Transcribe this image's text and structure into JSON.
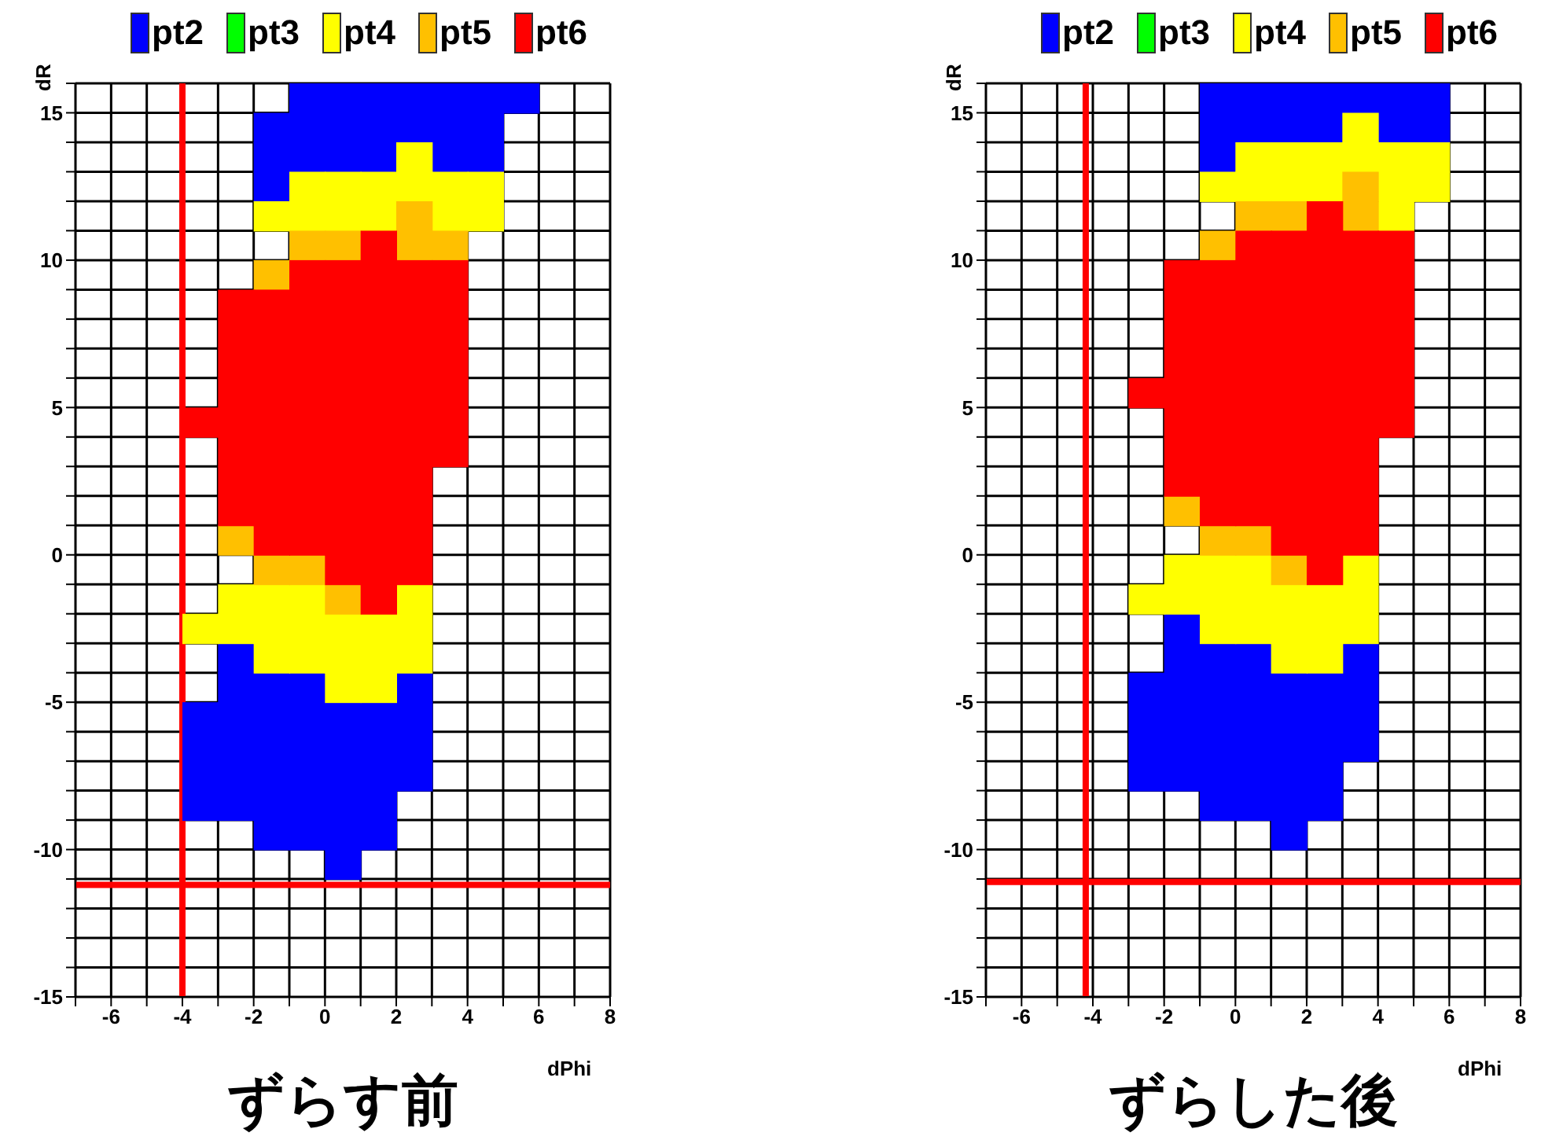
{
  "chart_data": [
    {
      "type": "scatter",
      "marker": "square",
      "title": "ずらす前",
      "xlabel": "dPhi",
      "ylabel": "dR",
      "xlim": [
        -7,
        8
      ],
      "ylim": [
        -15,
        16
      ],
      "xticks": [
        {
          "value": -7,
          "label": null
        },
        -6,
        {
          "value": -5,
          "label": null
        },
        -4,
        {
          "value": -3,
          "label": null
        },
        -2,
        {
          "value": -1,
          "label": null
        },
        0,
        {
          "value": 1,
          "label": null
        },
        2,
        {
          "value": 3,
          "label": null
        },
        4,
        {
          "value": 5,
          "label": null
        },
        6,
        {
          "value": 7,
          "label": null
        },
        8
      ],
      "yticks": [
        -15,
        {
          "value": -14,
          "label": null
        },
        {
          "value": -13,
          "label": null
        },
        {
          "value": -12,
          "label": null
        },
        {
          "value": -11,
          "label": null
        },
        -10,
        {
          "value": -9,
          "label": null
        },
        {
          "value": -8,
          "label": null
        },
        {
          "value": -7,
          "label": null
        },
        {
          "value": -6,
          "label": null
        },
        -5,
        {
          "value": -4,
          "label": null
        },
        {
          "value": -3,
          "label": null
        },
        {
          "value": -2,
          "label": null
        },
        {
          "value": -1,
          "label": null
        },
        0,
        {
          "value": 1,
          "label": null
        },
        {
          "value": 2,
          "label": null
        },
        {
          "value": 3,
          "label": null
        },
        {
          "value": 4,
          "label": null
        },
        5,
        {
          "value": 6,
          "label": null
        },
        {
          "value": 7,
          "label": null
        },
        {
          "value": 8,
          "label": null
        },
        {
          "value": 9,
          "label": null
        },
        10,
        {
          "value": 11,
          "label": null
        },
        {
          "value": 12,
          "label": null
        },
        {
          "value": 13,
          "label": null
        },
        {
          "value": 14,
          "label": null
        },
        15,
        {
          "value": 16,
          "label": null
        }
      ],
      "grid": true,
      "legend": "top",
      "series": [
        {
          "name": "pt2",
          "color": "#0000ff",
          "x": [
            -0.5,
            0.5,
            1.5,
            2.5,
            3.5,
            4.5,
            5.5,
            -1.5,
            -0.5,
            0.5,
            1.5,
            2.5,
            3.5,
            4.5,
            -1.5,
            -0.5,
            0.5,
            1.5,
            3.5,
            4.5,
            -1.5,
            -2.5,
            -2.5,
            -1.5,
            -0.5,
            2.5,
            -3.5,
            -2.5,
            -1.5,
            -0.5,
            0.5,
            1.5,
            2.5,
            -3.5,
            -2.5,
            -1.5,
            -0.5,
            0.5,
            1.5,
            2.5,
            -3.5,
            -2.5,
            -1.5,
            -0.5,
            0.5,
            1.5,
            2.5,
            -3.5,
            -2.5,
            -1.5,
            -0.5,
            0.5,
            1.5,
            -1.5,
            -0.5,
            0.5,
            1.5,
            0.5
          ],
          "values": [
            15.5,
            15.5,
            15.5,
            15.5,
            15.5,
            15.5,
            15.5,
            14.5,
            14.5,
            14.5,
            14.5,
            14.5,
            14.5,
            14.5,
            13.5,
            13.5,
            13.5,
            13.5,
            13.5,
            13.5,
            12.5,
            -3.5,
            -4.5,
            -4.5,
            -4.5,
            -4.5,
            -5.5,
            -5.5,
            -5.5,
            -5.5,
            -5.5,
            -5.5,
            -5.5,
            -6.5,
            -6.5,
            -6.5,
            -6.5,
            -6.5,
            -6.5,
            -6.5,
            -7.5,
            -7.5,
            -7.5,
            -7.5,
            -7.5,
            -7.5,
            -7.5,
            -8.5,
            -8.5,
            -8.5,
            -8.5,
            -8.5,
            -8.5,
            -9.5,
            -9.5,
            -9.5,
            -9.5,
            -10.5
          ]
        },
        {
          "name": "pt3",
          "color": "#00ff00"
        },
        {
          "name": "pt4",
          "color": "#ffff00",
          "x": [
            2.5,
            -0.5,
            0.5,
            1.5,
            2.5,
            3.5,
            4.5,
            -1.5,
            -0.5,
            0.5,
            1.5,
            3.5,
            4.5,
            -2.5,
            -1.5,
            -0.5,
            2.5,
            -3.5,
            -2.5,
            -1.5,
            -0.5,
            0.5,
            1.5,
            2.5,
            -1.5,
            -0.5,
            0.5,
            1.5,
            2.5,
            0.5,
            1.5
          ],
          "values": [
            13.5,
            12.5,
            12.5,
            12.5,
            12.5,
            12.5,
            12.5,
            11.5,
            11.5,
            11.5,
            11.5,
            11.5,
            11.5,
            -1.5,
            -1.5,
            -1.5,
            -1.5,
            -2.5,
            -2.5,
            -2.5,
            -2.5,
            -2.5,
            -2.5,
            -2.5,
            -3.5,
            -3.5,
            -3.5,
            -3.5,
            -3.5,
            -4.5,
            -4.5
          ]
        },
        {
          "name": "pt5",
          "color": "#ffc000",
          "x": [
            2.5,
            -0.5,
            0.5,
            2.5,
            3.5,
            -1.5,
            -2.5,
            -1.5,
            -0.5,
            0.5
          ],
          "values": [
            11.5,
            10.5,
            10.5,
            10.5,
            10.5,
            9.5,
            0.5,
            -0.5,
            -0.5,
            -1.5
          ]
        },
        {
          "name": "pt6",
          "color": "#ff0000",
          "x": [
            1.5,
            -0.5,
            0.5,
            1.5,
            2.5,
            3.5,
            -2.5,
            -1.5,
            -0.5,
            0.5,
            1.5,
            2.5,
            3.5,
            -2.5,
            -1.5,
            -0.5,
            0.5,
            1.5,
            2.5,
            3.5,
            -2.5,
            -1.5,
            -0.5,
            0.5,
            1.5,
            2.5,
            3.5,
            -2.5,
            -1.5,
            -0.5,
            0.5,
            1.5,
            2.5,
            3.5,
            -3.5,
            -2.5,
            -1.5,
            -0.5,
            0.5,
            1.5,
            2.5,
            3.5,
            -2.5,
            -1.5,
            -0.5,
            0.5,
            1.5,
            2.5,
            3.5,
            -2.5,
            -1.5,
            -0.5,
            0.5,
            1.5,
            2.5,
            -2.5,
            -1.5,
            -0.5,
            0.5,
            1.5,
            2.5,
            -1.5,
            -0.5,
            0.5,
            1.5,
            2.5,
            0.5,
            1.5,
            2.5,
            1.5
          ],
          "values": [
            10.5,
            9.5,
            9.5,
            9.5,
            9.5,
            9.5,
            8.5,
            8.5,
            8.5,
            8.5,
            8.5,
            8.5,
            8.5,
            7.5,
            7.5,
            7.5,
            7.5,
            7.5,
            7.5,
            7.5,
            6.5,
            6.5,
            6.5,
            6.5,
            6.5,
            6.5,
            6.5,
            5.5,
            5.5,
            5.5,
            5.5,
            5.5,
            5.5,
            5.5,
            4.5,
            4.5,
            4.5,
            4.5,
            4.5,
            4.5,
            4.5,
            4.5,
            3.5,
            3.5,
            3.5,
            3.5,
            3.5,
            3.5,
            3.5,
            2.5,
            2.5,
            2.5,
            2.5,
            2.5,
            2.5,
            1.5,
            1.5,
            1.5,
            1.5,
            1.5,
            1.5,
            0.5,
            0.5,
            0.5,
            0.5,
            0.5,
            -0.5,
            -0.5,
            -0.5,
            -1.5
          ]
        }
      ],
      "ref_lines": [
        {
          "axis": "x",
          "value": -4,
          "color": "#ff0000"
        },
        {
          "axis": "y",
          "value": -11.2,
          "color": "#ff0000"
        }
      ]
    },
    {
      "type": "scatter",
      "marker": "square",
      "title": "ずらした後",
      "xlabel": "dPhi",
      "ylabel": "dR",
      "xlim": [
        -7,
        8
      ],
      "ylim": [
        -15,
        16
      ],
      "xticks": [
        {
          "value": -7,
          "label": null
        },
        -6,
        {
          "value": -5,
          "label": null
        },
        -4,
        {
          "value": -3,
          "label": null
        },
        -2,
        {
          "value": -1,
          "label": null
        },
        0,
        {
          "value": 1,
          "label": null
        },
        2,
        {
          "value": 3,
          "label": null
        },
        4,
        {
          "value": 5,
          "label": null
        },
        6,
        {
          "value": 7,
          "label": null
        },
        8
      ],
      "yticks": [
        -15,
        {
          "value": -14,
          "label": null
        },
        {
          "value": -13,
          "label": null
        },
        {
          "value": -12,
          "label": null
        },
        {
          "value": -11,
          "label": null
        },
        -10,
        {
          "value": -9,
          "label": null
        },
        {
          "value": -8,
          "label": null
        },
        {
          "value": -7,
          "label": null
        },
        {
          "value": -6,
          "label": null
        },
        -5,
        {
          "value": -4,
          "label": null
        },
        {
          "value": -3,
          "label": null
        },
        {
          "value": -2,
          "label": null
        },
        {
          "value": -1,
          "label": null
        },
        0,
        {
          "value": 1,
          "label": null
        },
        {
          "value": 2,
          "label": null
        },
        {
          "value": 3,
          "label": null
        },
        {
          "value": 4,
          "label": null
        },
        5,
        {
          "value": 6,
          "label": null
        },
        {
          "value": 7,
          "label": null
        },
        {
          "value": 8,
          "label": null
        },
        {
          "value": 9,
          "label": null
        },
        10,
        {
          "value": 11,
          "label": null
        },
        {
          "value": 12,
          "label": null
        },
        {
          "value": 13,
          "label": null
        },
        {
          "value": 14,
          "label": null
        },
        15,
        {
          "value": 16,
          "label": null
        }
      ],
      "grid": true,
      "legend": "top",
      "series": [
        {
          "name": "pt2",
          "color": "#0000ff",
          "x": [
            -0.5,
            0.5,
            1.5,
            2.5,
            3.5,
            4.5,
            5.5,
            -0.5,
            0.5,
            1.5,
            2.5,
            4.5,
            5.5,
            -0.5,
            -1.5,
            -1.5,
            -0.5,
            0.5,
            3.5,
            -2.5,
            -1.5,
            -0.5,
            0.5,
            1.5,
            2.5,
            3.5,
            -2.5,
            -1.5,
            -0.5,
            0.5,
            1.5,
            2.5,
            3.5,
            -2.5,
            -1.5,
            -0.5,
            0.5,
            1.5,
            2.5,
            3.5,
            -2.5,
            -1.5,
            -0.5,
            0.5,
            1.5,
            2.5,
            -0.5,
            0.5,
            1.5,
            2.5,
            1.5
          ],
          "values": [
            15.5,
            15.5,
            15.5,
            15.5,
            15.5,
            15.5,
            15.5,
            14.5,
            14.5,
            14.5,
            14.5,
            14.5,
            14.5,
            13.5,
            -2.5,
            -3.5,
            -3.5,
            -3.5,
            -3.5,
            -4.5,
            -4.5,
            -4.5,
            -4.5,
            -4.5,
            -4.5,
            -4.5,
            -5.5,
            -5.5,
            -5.5,
            -5.5,
            -5.5,
            -5.5,
            -5.5,
            -6.5,
            -6.5,
            -6.5,
            -6.5,
            -6.5,
            -6.5,
            -6.5,
            -7.5,
            -7.5,
            -7.5,
            -7.5,
            -7.5,
            -7.5,
            -8.5,
            -8.5,
            -8.5,
            -8.5,
            -9.5
          ]
        },
        {
          "name": "pt3",
          "color": "#00ff00"
        },
        {
          "name": "pt4",
          "color": "#ffff00",
          "x": [
            3.5,
            0.5,
            1.5,
            2.5,
            3.5,
            4.5,
            5.5,
            -0.5,
            0.5,
            1.5,
            2.5,
            4.5,
            5.5,
            4.5,
            -1.5,
            -0.5,
            0.5,
            3.5,
            -2.5,
            -1.5,
            -0.5,
            0.5,
            1.5,
            2.5,
            3.5,
            -0.5,
            0.5,
            1.5,
            2.5,
            3.5,
            1.5,
            2.5
          ],
          "values": [
            14.5,
            13.5,
            13.5,
            13.5,
            13.5,
            13.5,
            13.5,
            12.5,
            12.5,
            12.5,
            12.5,
            12.5,
            12.5,
            11.5,
            -0.5,
            -0.5,
            -0.5,
            -0.5,
            -1.5,
            -1.5,
            -1.5,
            -1.5,
            -1.5,
            -1.5,
            -1.5,
            -2.5,
            -2.5,
            -2.5,
            -2.5,
            -2.5,
            -3.5,
            -3.5
          ]
        },
        {
          "name": "pt5",
          "color": "#ffc000",
          "x": [
            3.5,
            0.5,
            1.5,
            3.5,
            -0.5,
            -1.5,
            -0.5,
            0.5,
            1.5
          ],
          "values": [
            12.5,
            11.5,
            11.5,
            11.5,
            10.5,
            1.5,
            0.5,
            0.5,
            -0.5
          ]
        },
        {
          "name": "pt6",
          "color": "#ff0000",
          "x": [
            2.5,
            0.5,
            1.5,
            2.5,
            3.5,
            4.5,
            -1.5,
            -0.5,
            0.5,
            1.5,
            2.5,
            3.5,
            4.5,
            -1.5,
            -0.5,
            0.5,
            1.5,
            2.5,
            3.5,
            4.5,
            -1.5,
            -0.5,
            0.5,
            1.5,
            2.5,
            3.5,
            4.5,
            -1.5,
            -0.5,
            0.5,
            1.5,
            2.5,
            3.5,
            4.5,
            -2.5,
            -1.5,
            -0.5,
            0.5,
            1.5,
            2.5,
            3.5,
            4.5,
            -1.5,
            -0.5,
            0.5,
            1.5,
            2.5,
            3.5,
            4.5,
            -1.5,
            -0.5,
            0.5,
            1.5,
            2.5,
            3.5,
            -1.5,
            -0.5,
            0.5,
            1.5,
            2.5,
            3.5,
            -0.5,
            0.5,
            1.5,
            2.5,
            3.5,
            1.5,
            2.5,
            3.5,
            2.5
          ],
          "values": [
            11.5,
            10.5,
            10.5,
            10.5,
            10.5,
            10.5,
            9.5,
            9.5,
            9.5,
            9.5,
            9.5,
            9.5,
            9.5,
            8.5,
            8.5,
            8.5,
            8.5,
            8.5,
            8.5,
            8.5,
            7.5,
            7.5,
            7.5,
            7.5,
            7.5,
            7.5,
            7.5,
            6.5,
            6.5,
            6.5,
            6.5,
            6.5,
            6.5,
            6.5,
            5.5,
            5.5,
            5.5,
            5.5,
            5.5,
            5.5,
            5.5,
            5.5,
            4.5,
            4.5,
            4.5,
            4.5,
            4.5,
            4.5,
            4.5,
            3.5,
            3.5,
            3.5,
            3.5,
            3.5,
            3.5,
            2.5,
            2.5,
            2.5,
            2.5,
            2.5,
            2.5,
            1.5,
            1.5,
            1.5,
            1.5,
            1.5,
            0.5,
            0.5,
            0.5,
            -0.5
          ]
        }
      ],
      "ref_lines": [
        {
          "axis": "x",
          "value": -4.2,
          "color": "#ff0000"
        },
        {
          "axis": "y",
          "value": -11.1,
          "color": "#ff0000"
        }
      ]
    }
  ]
}
